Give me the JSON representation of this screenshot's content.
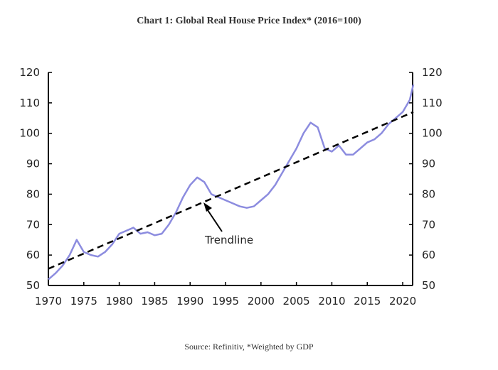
{
  "chart_data": {
    "type": "line",
    "title": "Chart 1: Global Real House Price Index* (2016=100)",
    "source": "Source: Refinitiv, *Weighted by GDP",
    "x": [
      1970,
      1971,
      1972,
      1973,
      1974,
      1975,
      1976,
      1977,
      1978,
      1979,
      1980,
      1981,
      1982,
      1983,
      1984,
      1985,
      1986,
      1987,
      1988,
      1989,
      1990,
      1991,
      1992,
      1993,
      1994,
      1995,
      1996,
      1997,
      1998,
      1999,
      2000,
      2001,
      2002,
      2003,
      2004,
      2005,
      2006,
      2007,
      2008,
      2009,
      2010,
      2011,
      2012,
      2013,
      2014,
      2015,
      2016,
      2017,
      2018,
      2019,
      2020,
      2021,
      2021.5
    ],
    "series": [
      {
        "color": "#8c8cdf",
        "values": [
          52,
          54,
          56.5,
          60,
          65,
          61,
          60,
          59.5,
          61,
          63.5,
          67,
          68,
          69,
          67,
          67.5,
          66.5,
          67,
          70,
          74,
          79,
          83,
          85.5,
          84,
          80,
          79,
          78,
          77,
          76,
          75.5,
          76,
          78,
          80,
          83,
          87,
          91,
          95,
          100,
          103.5,
          102,
          95,
          94,
          96,
          93,
          93,
          95,
          97,
          98,
          100,
          103,
          105,
          107,
          111,
          116
        ]
      },
      {
        "name": "Trendline",
        "color": "#000000",
        "dashed": true,
        "x": [
          1970,
          2021.5
        ],
        "values": [
          55.5,
          107
        ]
      }
    ],
    "xlim": [
      1970,
      2021.4
    ],
    "xticks": [
      1970,
      1975,
      1980,
      1985,
      1990,
      1995,
      2000,
      2005,
      2010,
      2015,
      2020
    ],
    "ylim": [
      50,
      120
    ],
    "yticks": [
      50,
      60,
      70,
      80,
      90,
      100,
      110,
      120
    ],
    "y2lim": [
      50,
      120
    ],
    "y2ticks": [
      50,
      60,
      70,
      80,
      90,
      100,
      110,
      120
    ]
  }
}
